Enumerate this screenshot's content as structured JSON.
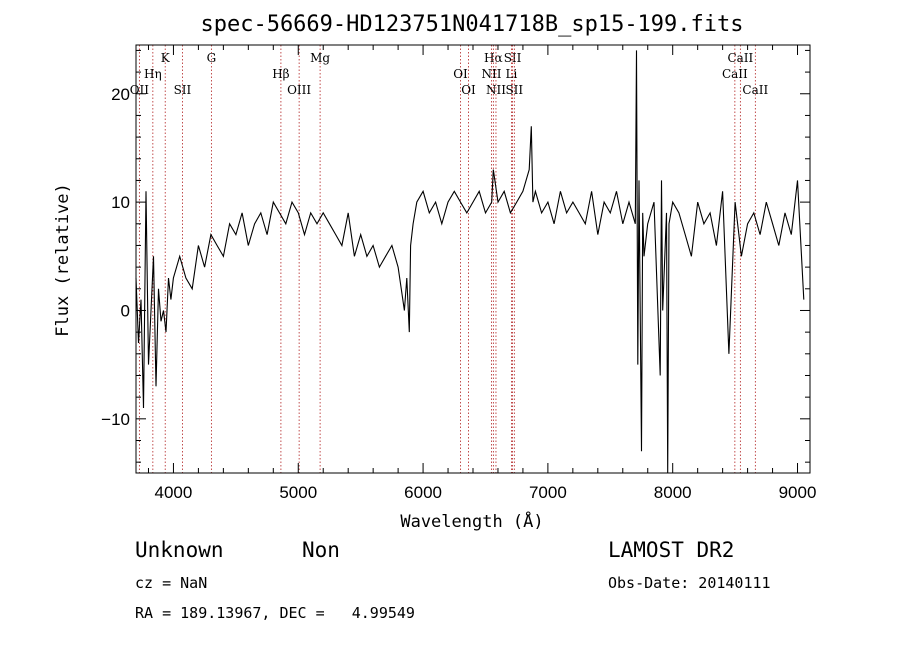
{
  "chart_data": {
    "type": "line",
    "title": "spec-56669-HD123751N041718B_sp15-199.fits",
    "xlabel": "Wavelength (Å)",
    "ylabel": "Flux (relative)",
    "xlim": [
      3700,
      9100
    ],
    "ylim": [
      -15,
      24.5
    ],
    "x_ticks": [
      4000,
      5000,
      6000,
      7000,
      8000,
      9000
    ],
    "y_ticks": [
      -10,
      0,
      10,
      20
    ],
    "grid": false,
    "series": [
      {
        "x": [
          3700,
          3720,
          3740,
          3760,
          3780,
          3800,
          3820,
          3840,
          3860,
          3880,
          3900,
          3920,
          3940,
          3960,
          3980,
          4000,
          4050,
          4100,
          4150,
          4200,
          4250,
          4300,
          4350,
          4400,
          4450,
          4500,
          4550,
          4600,
          4650,
          4700,
          4750,
          4800,
          4850,
          4900,
          4950,
          5000,
          5050,
          5100,
          5150,
          5200,
          5250,
          5300,
          5350,
          5400,
          5450,
          5500,
          5550,
          5600,
          5650,
          5700,
          5750,
          5800,
          5850,
          5870,
          5890,
          5900,
          5920,
          5950,
          6000,
          6050,
          6100,
          6150,
          6200,
          6250,
          6300,
          6350,
          6400,
          6450,
          6500,
          6550,
          6563,
          6600,
          6650,
          6700,
          6750,
          6800,
          6850,
          6867,
          6880,
          6900,
          6950,
          7000,
          7050,
          7100,
          7150,
          7200,
          7250,
          7300,
          7350,
          7400,
          7450,
          7500,
          7550,
          7600,
          7650,
          7700,
          7710,
          7720,
          7730,
          7750,
          7760,
          7770,
          7800,
          7850,
          7900,
          7910,
          7920,
          7950,
          7960,
          7970,
          8000,
          8050,
          8100,
          8150,
          8200,
          8250,
          8300,
          8350,
          8400,
          8450,
          8500,
          8550,
          8600,
          8650,
          8700,
          8750,
          8800,
          8850,
          8900,
          8950,
          9000,
          9050
        ],
        "y": [
          3,
          -3,
          1,
          -9,
          11,
          -5,
          0,
          5,
          -7,
          2,
          -1,
          0,
          -2,
          3,
          1,
          3,
          5,
          3,
          2,
          6,
          4,
          7,
          6,
          5,
          8,
          7,
          9,
          6,
          8,
          9,
          7,
          10,
          9,
          8,
          10,
          9,
          7,
          9,
          8,
          9,
          8,
          7,
          6,
          9,
          5,
          7,
          5,
          6,
          4,
          5,
          6,
          4,
          0,
          3,
          -2,
          6,
          8,
          10,
          11,
          9,
          10,
          8,
          10,
          11,
          10,
          9,
          10,
          11,
          9,
          10,
          13,
          10,
          11,
          9,
          10,
          11,
          13,
          17,
          10,
          11,
          9,
          10,
          8,
          11,
          9,
          10,
          9,
          8,
          11,
          7,
          10,
          9,
          11,
          8,
          10,
          8,
          24,
          -5,
          12,
          -13,
          9,
          5,
          8,
          10,
          -6,
          12,
          0,
          9,
          -15,
          8,
          10,
          9,
          7,
          5,
          10,
          8,
          9,
          6,
          11,
          -4,
          10,
          5,
          8,
          9,
          7,
          10,
          8,
          6,
          9,
          7,
          12,
          1
        ]
      }
    ],
    "lines_upper": [
      {
        "name": "K",
        "x": 3934
      },
      {
        "name": "Hη",
        "x": 3835
      },
      {
        "name": "G",
        "x": 4304
      },
      {
        "name": "Hβ",
        "x": 4861
      },
      {
        "name": "Mg",
        "x": 5175
      },
      {
        "name": "OI",
        "x": 6300
      },
      {
        "name": "Hα",
        "x": 6563
      },
      {
        "name": "NII",
        "x": 6548
      },
      {
        "name": "SII",
        "x": 6717
      },
      {
        "name": "Li",
        "x": 6708
      },
      {
        "name": "CaII",
        "x": 8542
      },
      {
        "name": "CaII",
        "x": 8498
      }
    ],
    "lines_lower": [
      {
        "name": "OII",
        "x": 3727
      },
      {
        "name": "SII",
        "x": 4072
      },
      {
        "name": "OIII",
        "x": 5007
      },
      {
        "name": "OI",
        "x": 6364
      },
      {
        "name": "NII",
        "x": 6584
      },
      {
        "name": "SII",
        "x": 6731
      },
      {
        "name": "CaII",
        "x": 8662
      }
    ]
  },
  "info": {
    "class": "Unknown",
    "subclass": "Non",
    "survey": "LAMOST DR2",
    "cz": "cz = NaN",
    "obs_date": "Obs-Date: 20140111",
    "coords": "RA = 189.13967, DEC =   4.99549"
  }
}
